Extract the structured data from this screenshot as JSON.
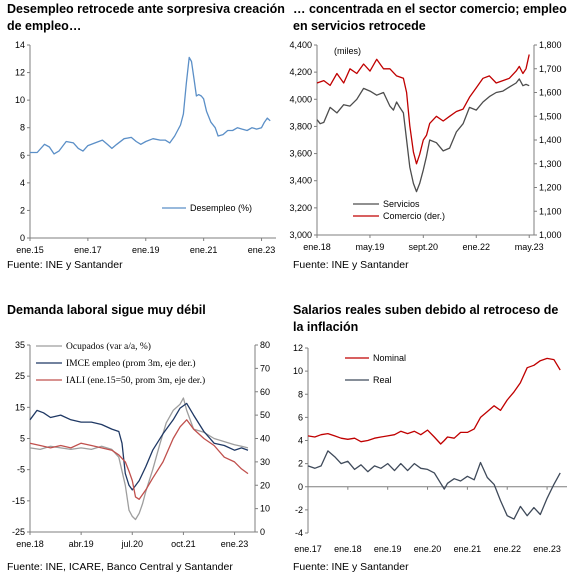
{
  "panels": [
    {
      "title": "Desempleo retrocede ante sorpresiva creación de empleo…",
      "source": "Fuente: INE y Santander"
    },
    {
      "title": "… concentrada en el sector comercio; empleo en servicios retrocede",
      "source": "Fuente: INE y Santander"
    },
    {
      "title": "Demanda laboral sigue muy débil",
      "source": "Fuente: INE, ICARE, Banco Central y Santander"
    },
    {
      "title": "Salarios reales suben debido al retroceso de la inflación",
      "source": "Fuente: INE y Santander"
    }
  ],
  "chart_data": [
    {
      "type": "line",
      "title": "Desempleo retrocede ante sorpresiva creación de empleo…",
      "xlim": [
        2015,
        2023.5
      ],
      "x_ticks": [
        2015,
        2017,
        2019,
        2021,
        2023
      ],
      "x_tick_labels": [
        "ene.15",
        "ene.17",
        "ene.19",
        "ene.21",
        "ene.23"
      ],
      "ylim": [
        0,
        14
      ],
      "y_ticks": [
        0,
        2,
        4,
        6,
        8,
        10,
        12,
        14
      ],
      "grid": false,
      "legend_position": "bottom-right",
      "series": [
        {
          "name": "Desempleo (%)",
          "color": "#5b8fc7",
          "x": [
            2015.0,
            2015.25,
            2015.5,
            2015.67,
            2015.83,
            2016.0,
            2016.25,
            2016.5,
            2016.67,
            2016.83,
            2017.0,
            2017.25,
            2017.5,
            2017.67,
            2017.83,
            2018.0,
            2018.25,
            2018.5,
            2018.67,
            2018.83,
            2019.0,
            2019.25,
            2019.5,
            2019.67,
            2019.83,
            2020.0,
            2020.1,
            2020.2,
            2020.3,
            2020.4,
            2020.5,
            2020.58,
            2020.67,
            2020.75,
            2020.83,
            2020.92,
            2021.0,
            2021.1,
            2021.25,
            2021.4,
            2021.5,
            2021.67,
            2021.83,
            2022.0,
            2022.17,
            2022.33,
            2022.5,
            2022.67,
            2022.83,
            2023.0,
            2023.1,
            2023.2,
            2023.3
          ],
          "values": [
            6.2,
            6.2,
            6.8,
            6.6,
            6.1,
            6.3,
            7.0,
            6.9,
            6.5,
            6.3,
            6.7,
            6.9,
            7.1,
            6.8,
            6.5,
            6.8,
            7.2,
            7.3,
            7.0,
            6.8,
            7.0,
            7.2,
            7.1,
            7.1,
            6.9,
            7.4,
            7.8,
            8.2,
            9.0,
            11.2,
            13.1,
            12.8,
            11.5,
            10.3,
            10.4,
            10.3,
            10.1,
            9.2,
            8.4,
            8.0,
            7.4,
            7.5,
            7.8,
            7.8,
            8.0,
            7.9,
            7.8,
            8.0,
            7.9,
            8.0,
            8.4,
            8.7,
            8.5
          ]
        }
      ]
    },
    {
      "type": "line",
      "title": "… concentrada en el sector comercio; empleo en servicios retrocede",
      "xlim": [
        2018,
        2023.45
      ],
      "x_ticks": [
        2018,
        2019.33,
        2020.67,
        2022,
        2023.33
      ],
      "x_tick_labels": [
        "ene.18",
        "may.19",
        "sept.20",
        "ene.22",
        "may.23"
      ],
      "ylim": [
        3000,
        4400
      ],
      "y_ticks": [
        3000,
        3200,
        3400,
        3600,
        3800,
        4000,
        4200,
        4400
      ],
      "y_tick_labels": [
        "3,000",
        "3,200",
        "3,400",
        "3,600",
        "3,800",
        "4,000",
        "4,200",
        "4,400"
      ],
      "ylabel": "(miles)",
      "y2lim": [
        1000,
        1800
      ],
      "y2_ticks": [
        1000,
        1100,
        1200,
        1300,
        1400,
        1500,
        1600,
        1700,
        1800
      ],
      "y2_tick_labels": [
        "1,000",
        "1,100",
        "1,200",
        "1,300",
        "1,400",
        "1,500",
        "1,600",
        "1,700",
        "1,800"
      ],
      "grid": false,
      "legend_position": "bottom-center",
      "series": [
        {
          "name": "Servicios",
          "color": "#4d4d4d",
          "axis": "left",
          "x": [
            2018.0,
            2018.08,
            2018.17,
            2018.33,
            2018.5,
            2018.67,
            2018.83,
            2019.0,
            2019.17,
            2019.33,
            2019.5,
            2019.67,
            2019.83,
            2019.92,
            2020.0,
            2020.08,
            2020.17,
            2020.25,
            2020.33,
            2020.42,
            2020.5,
            2020.58,
            2020.67,
            2020.75,
            2020.83,
            2021.0,
            2021.17,
            2021.33,
            2021.5,
            2021.67,
            2021.83,
            2022.0,
            2022.17,
            2022.33,
            2022.5,
            2022.67,
            2022.83,
            2023.0,
            2023.08,
            2023.17,
            2023.25,
            2023.33
          ],
          "values": [
            3850,
            3820,
            3830,
            3940,
            3900,
            3960,
            3950,
            4000,
            4080,
            4060,
            4030,
            4050,
            3950,
            3920,
            3980,
            3940,
            3900,
            3700,
            3500,
            3380,
            3320,
            3380,
            3480,
            3580,
            3700,
            3680,
            3620,
            3640,
            3760,
            3820,
            3940,
            3920,
            3980,
            4020,
            4050,
            4060,
            4090,
            4120,
            4150,
            4100,
            4110,
            4100
          ]
        },
        {
          "name": "Comercio (der.)",
          "color": "#c00000",
          "axis": "right",
          "x": [
            2018.0,
            2018.17,
            2018.33,
            2018.5,
            2018.67,
            2018.83,
            2019.0,
            2019.17,
            2019.33,
            2019.5,
            2019.67,
            2019.83,
            2020.0,
            2020.17,
            2020.25,
            2020.33,
            2020.42,
            2020.5,
            2020.58,
            2020.67,
            2020.75,
            2020.83,
            2021.0,
            2021.17,
            2021.33,
            2021.5,
            2021.67,
            2021.83,
            2022.0,
            2022.17,
            2022.33,
            2022.5,
            2022.67,
            2022.83,
            2023.0,
            2023.08,
            2023.17,
            2023.25,
            2023.33
          ],
          "values": [
            1640,
            1650,
            1630,
            1680,
            1640,
            1700,
            1680,
            1720,
            1690,
            1740,
            1700,
            1700,
            1670,
            1660,
            1600,
            1460,
            1350,
            1300,
            1340,
            1400,
            1420,
            1470,
            1500,
            1480,
            1500,
            1520,
            1530,
            1580,
            1620,
            1660,
            1670,
            1640,
            1650,
            1660,
            1690,
            1710,
            1680,
            1700,
            1760
          ]
        }
      ]
    },
    {
      "type": "line",
      "title": "Demanda laboral sigue muy débil",
      "xlim": [
        2018,
        2023.5
      ],
      "x_ticks": [
        2018,
        2019.25,
        2020.5,
        2021.75,
        2023
      ],
      "x_tick_labels": [
        "ene.18",
        "abr.19",
        "jul.20",
        "oct.21",
        "ene.23"
      ],
      "ylim": [
        -25,
        35
      ],
      "y_ticks": [
        -25,
        -15,
        -5,
        5,
        15,
        25,
        35
      ],
      "y2lim": [
        0,
        80
      ],
      "y2_ticks": [
        0,
        10,
        20,
        30,
        40,
        50,
        60,
        70,
        80
      ],
      "grid": false,
      "legend_position": "top-center",
      "series": [
        {
          "name": "Ocupados (var a/a, %)",
          "color": "#9e9e9e",
          "axis": "left",
          "x": [
            2018.0,
            2018.25,
            2018.5,
            2018.75,
            2019.0,
            2019.25,
            2019.5,
            2019.75,
            2020.0,
            2020.17,
            2020.33,
            2020.42,
            2020.5,
            2020.58,
            2020.67,
            2020.75,
            2020.83,
            2021.0,
            2021.17,
            2021.33,
            2021.5,
            2021.67,
            2021.75,
            2021.83,
            2022.0,
            2022.25,
            2022.5,
            2022.75,
            2023.0,
            2023.17,
            2023.33
          ],
          "values": [
            2,
            1.5,
            2.5,
            2,
            1.5,
            2,
            1.5,
            2.5,
            1.5,
            -1,
            -10,
            -18,
            -20,
            -21,
            -19,
            -16,
            -12,
            -5,
            3,
            10,
            14,
            16,
            18,
            14,
            8,
            7,
            5,
            4,
            3,
            2.5,
            2
          ]
        },
        {
          "name": "IMCE empleo (prom 3m, eje der.)",
          "color": "#1f3864",
          "axis": "right",
          "x": [
            2018.0,
            2018.17,
            2018.33,
            2018.5,
            2018.75,
            2019.0,
            2019.25,
            2019.5,
            2019.75,
            2020.0,
            2020.17,
            2020.25,
            2020.33,
            2020.42,
            2020.5,
            2020.67,
            2020.83,
            2021.0,
            2021.25,
            2021.5,
            2021.67,
            2021.83,
            2022.0,
            2022.25,
            2022.5,
            2022.75,
            2023.0,
            2023.17,
            2023.33
          ],
          "values": [
            48,
            52,
            51,
            49,
            50,
            48,
            47,
            47,
            46,
            44,
            43,
            38,
            25,
            20,
            18,
            22,
            28,
            35,
            42,
            48,
            53,
            55,
            50,
            43,
            38,
            37,
            35,
            36,
            35
          ]
        },
        {
          "name": "IALI (ene.15=50, prom 3m, eje der.)",
          "color": "#c0504d",
          "axis": "right",
          "x": [
            2018.0,
            2018.25,
            2018.5,
            2018.75,
            2019.0,
            2019.25,
            2019.5,
            2019.75,
            2020.0,
            2020.17,
            2020.33,
            2020.42,
            2020.5,
            2020.58,
            2020.67,
            2020.83,
            2021.0,
            2021.25,
            2021.5,
            2021.67,
            2021.83,
            2022.0,
            2022.25,
            2022.5,
            2022.75,
            2023.0,
            2023.17,
            2023.33
          ],
          "values": [
            38,
            37,
            36,
            37,
            36,
            38,
            37,
            36,
            35,
            33,
            30,
            26,
            22,
            15,
            14,
            18,
            23,
            30,
            40,
            45,
            48,
            44,
            40,
            37,
            32,
            30,
            27,
            25
          ]
        }
      ]
    },
    {
      "type": "line",
      "title": "Salarios reales suben debido al retroceso de la inflación",
      "xlim": [
        2017,
        2023.5
      ],
      "x_ticks": [
        2017,
        2018,
        2019,
        2020,
        2021,
        2022,
        2023
      ],
      "x_tick_labels": [
        "ene.17",
        "ene.18",
        "ene.19",
        "ene.20",
        "ene.21",
        "ene.22",
        "ene.23"
      ],
      "ylim": [
        -4,
        12
      ],
      "y_ticks": [
        -4,
        -2,
        0,
        2,
        4,
        6,
        8,
        10,
        12
      ],
      "grid": false,
      "legend_position": "top-left",
      "series": [
        {
          "name": "Nominal",
          "color": "#c00000",
          "x": [
            2017.0,
            2017.17,
            2017.33,
            2017.5,
            2017.67,
            2017.83,
            2018.0,
            2018.17,
            2018.33,
            2018.5,
            2018.67,
            2018.83,
            2019.0,
            2019.17,
            2019.33,
            2019.5,
            2019.67,
            2019.83,
            2020.0,
            2020.17,
            2020.33,
            2020.42,
            2020.5,
            2020.67,
            2020.83,
            2021.0,
            2021.17,
            2021.33,
            2021.5,
            2021.67,
            2021.83,
            2022.0,
            2022.17,
            2022.33,
            2022.5,
            2022.67,
            2022.83,
            2023.0,
            2023.17,
            2023.33
          ],
          "values": [
            4.4,
            4.3,
            4.5,
            4.6,
            4.4,
            4.2,
            4.1,
            4.2,
            3.9,
            4.0,
            4.2,
            4.3,
            4.4,
            4.5,
            4.8,
            4.6,
            4.8,
            4.5,
            4.9,
            4.3,
            3.7,
            4.0,
            4.3,
            4.2,
            4.7,
            4.7,
            5.0,
            6.0,
            6.5,
            7.0,
            6.6,
            7.5,
            8.2,
            9.0,
            10.3,
            10.5,
            10.9,
            11.1,
            11.0,
            10.1
          ]
        },
        {
          "name": "Real",
          "color": "#3f4a5a",
          "x": [
            2017.0,
            2017.17,
            2017.33,
            2017.5,
            2017.67,
            2017.83,
            2018.0,
            2018.17,
            2018.33,
            2018.5,
            2018.67,
            2018.83,
            2019.0,
            2019.17,
            2019.33,
            2019.5,
            2019.67,
            2019.83,
            2020.0,
            2020.17,
            2020.33,
            2020.42,
            2020.5,
            2020.67,
            2020.83,
            2021.0,
            2021.17,
            2021.33,
            2021.5,
            2021.67,
            2021.83,
            2022.0,
            2022.17,
            2022.33,
            2022.5,
            2022.67,
            2022.83,
            2023.0,
            2023.17,
            2023.33
          ],
          "values": [
            1.8,
            1.6,
            1.8,
            3.1,
            2.6,
            2.0,
            2.2,
            1.5,
            1.9,
            1.3,
            1.8,
            1.6,
            2.0,
            1.4,
            2.0,
            1.4,
            2.0,
            1.6,
            1.5,
            1.2,
            0.3,
            -0.2,
            0.3,
            0.7,
            0.5,
            0.9,
            0.6,
            2.1,
            0.8,
            0.2,
            -1.2,
            -2.5,
            -2.8,
            -1.7,
            -2.5,
            -1.8,
            -2.4,
            -1.0,
            0.2,
            1.2
          ]
        }
      ]
    }
  ]
}
